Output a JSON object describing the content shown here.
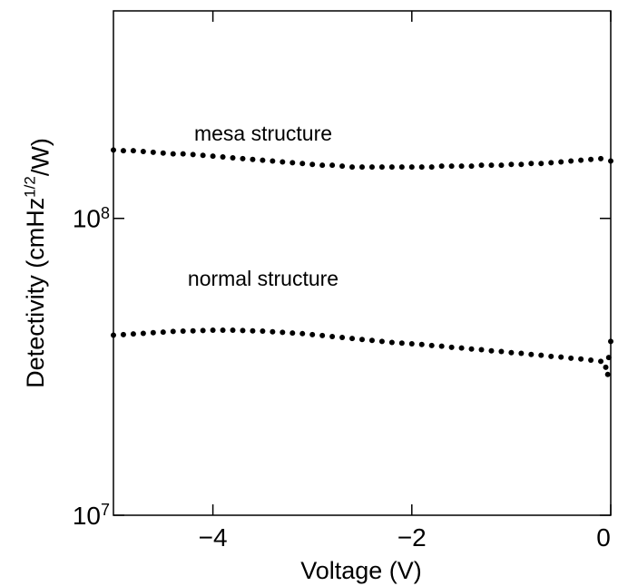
{
  "chart_data": {
    "type": "scatter",
    "xlabel": "Voltage (V)",
    "ylabel": "Detectivity (cmHz^1/2/W)",
    "xlim": [
      -5,
      0
    ],
    "ylim": [
      10000000,
      500000000
    ],
    "log_y": true,
    "xticks": [
      {
        "value": -4,
        "label": "−4"
      },
      {
        "value": -2,
        "label": "−2"
      },
      0
    ],
    "yticks": [
      {
        "value": 10000000,
        "label": "10^7"
      },
      {
        "value": 100000000,
        "label": "10^8"
      }
    ],
    "series": [
      {
        "name": "mesa structure",
        "color": "#000000",
        "x": [
          -5.0,
          -4.9,
          -4.8,
          -4.7,
          -4.6,
          -4.5,
          -4.4,
          -4.3,
          -4.2,
          -4.1,
          -4.0,
          -3.9,
          -3.8,
          -3.7,
          -3.6,
          -3.5,
          -3.4,
          -3.3,
          -3.2,
          -3.1,
          -3.0,
          -2.9,
          -2.8,
          -2.7,
          -2.6,
          -2.5,
          -2.4,
          -2.3,
          -2.2,
          -2.1,
          -2.0,
          -1.9,
          -1.8,
          -1.7,
          -1.6,
          -1.5,
          -1.4,
          -1.3,
          -1.2,
          -1.1,
          -1.0,
          -0.9,
          -0.8,
          -0.7,
          -0.6,
          -0.5,
          -0.4,
          -0.3,
          -0.2,
          -0.1,
          0.0
        ],
        "values": [
          170000000.0,
          169000000.0,
          169000000.0,
          168000000.0,
          167000000.0,
          166000000.0,
          165000000.0,
          165000000.0,
          164000000.0,
          163000000.0,
          162000000.0,
          161000000.0,
          160000000.0,
          159000000.0,
          158000000.0,
          157000000.0,
          156000000.0,
          155000000.0,
          154000000.0,
          153000000.0,
          152000000.0,
          151000000.0,
          151000000.0,
          150000000.0,
          149000000.0,
          149000000.0,
          149000000.0,
          149000000.0,
          149000000.0,
          149000000.0,
          149000000.0,
          149000000.0,
          149000000.0,
          150000000.0,
          150000000.0,
          150000000.0,
          150000000.0,
          151000000.0,
          151000000.0,
          151000000.0,
          152000000.0,
          152000000.0,
          153000000.0,
          153000000.0,
          154000000.0,
          155000000.0,
          156000000.0,
          157000000.0,
          158000000.0,
          159000000.0,
          156000000.0
        ]
      },
      {
        "name": "normal structure",
        "color": "#000000",
        "x": [
          -5.0,
          -4.9,
          -4.8,
          -4.7,
          -4.6,
          -4.5,
          -4.4,
          -4.3,
          -4.2,
          -4.1,
          -4.0,
          -3.9,
          -3.8,
          -3.7,
          -3.6,
          -3.5,
          -3.4,
          -3.3,
          -3.2,
          -3.1,
          -3.0,
          -2.9,
          -2.8,
          -2.7,
          -2.6,
          -2.5,
          -2.4,
          -2.3,
          -2.2,
          -2.1,
          -2.0,
          -1.9,
          -1.8,
          -1.7,
          -1.6,
          -1.5,
          -1.4,
          -1.3,
          -1.2,
          -1.1,
          -1.0,
          -0.9,
          -0.8,
          -0.7,
          -0.6,
          -0.5,
          -0.4,
          -0.3,
          -0.2,
          -0.1,
          -0.05,
          -0.03,
          -0.02,
          0.0
        ],
        "values": [
          40400000.0,
          40600000.0,
          40800000.0,
          41000000.0,
          41200000.0,
          41400000.0,
          41600000.0,
          41700000.0,
          41800000.0,
          41900000.0,
          42000000.0,
          42000000.0,
          42000000.0,
          41900000.0,
          41800000.0,
          41700000.0,
          41500000.0,
          41300000.0,
          41100000.0,
          40900000.0,
          40600000.0,
          40300000.0,
          40000000.0,
          39700000.0,
          39400000.0,
          39100000.0,
          38800000.0,
          38500000.0,
          38200000.0,
          38000000.0,
          37800000.0,
          37600000.0,
          37300000.0,
          37100000.0,
          36800000.0,
          36600000.0,
          36300000.0,
          36100000.0,
          35800000.0,
          35600000.0,
          35300000.0,
          35100000.0,
          34800000.0,
          34600000.0,
          34300000.0,
          34100000.0,
          33800000.0,
          33600000.0,
          33300000.0,
          33000000.0,
          31500000.0,
          29800000.0,
          34000000.0,
          38500000.0
        ]
      }
    ]
  }
}
